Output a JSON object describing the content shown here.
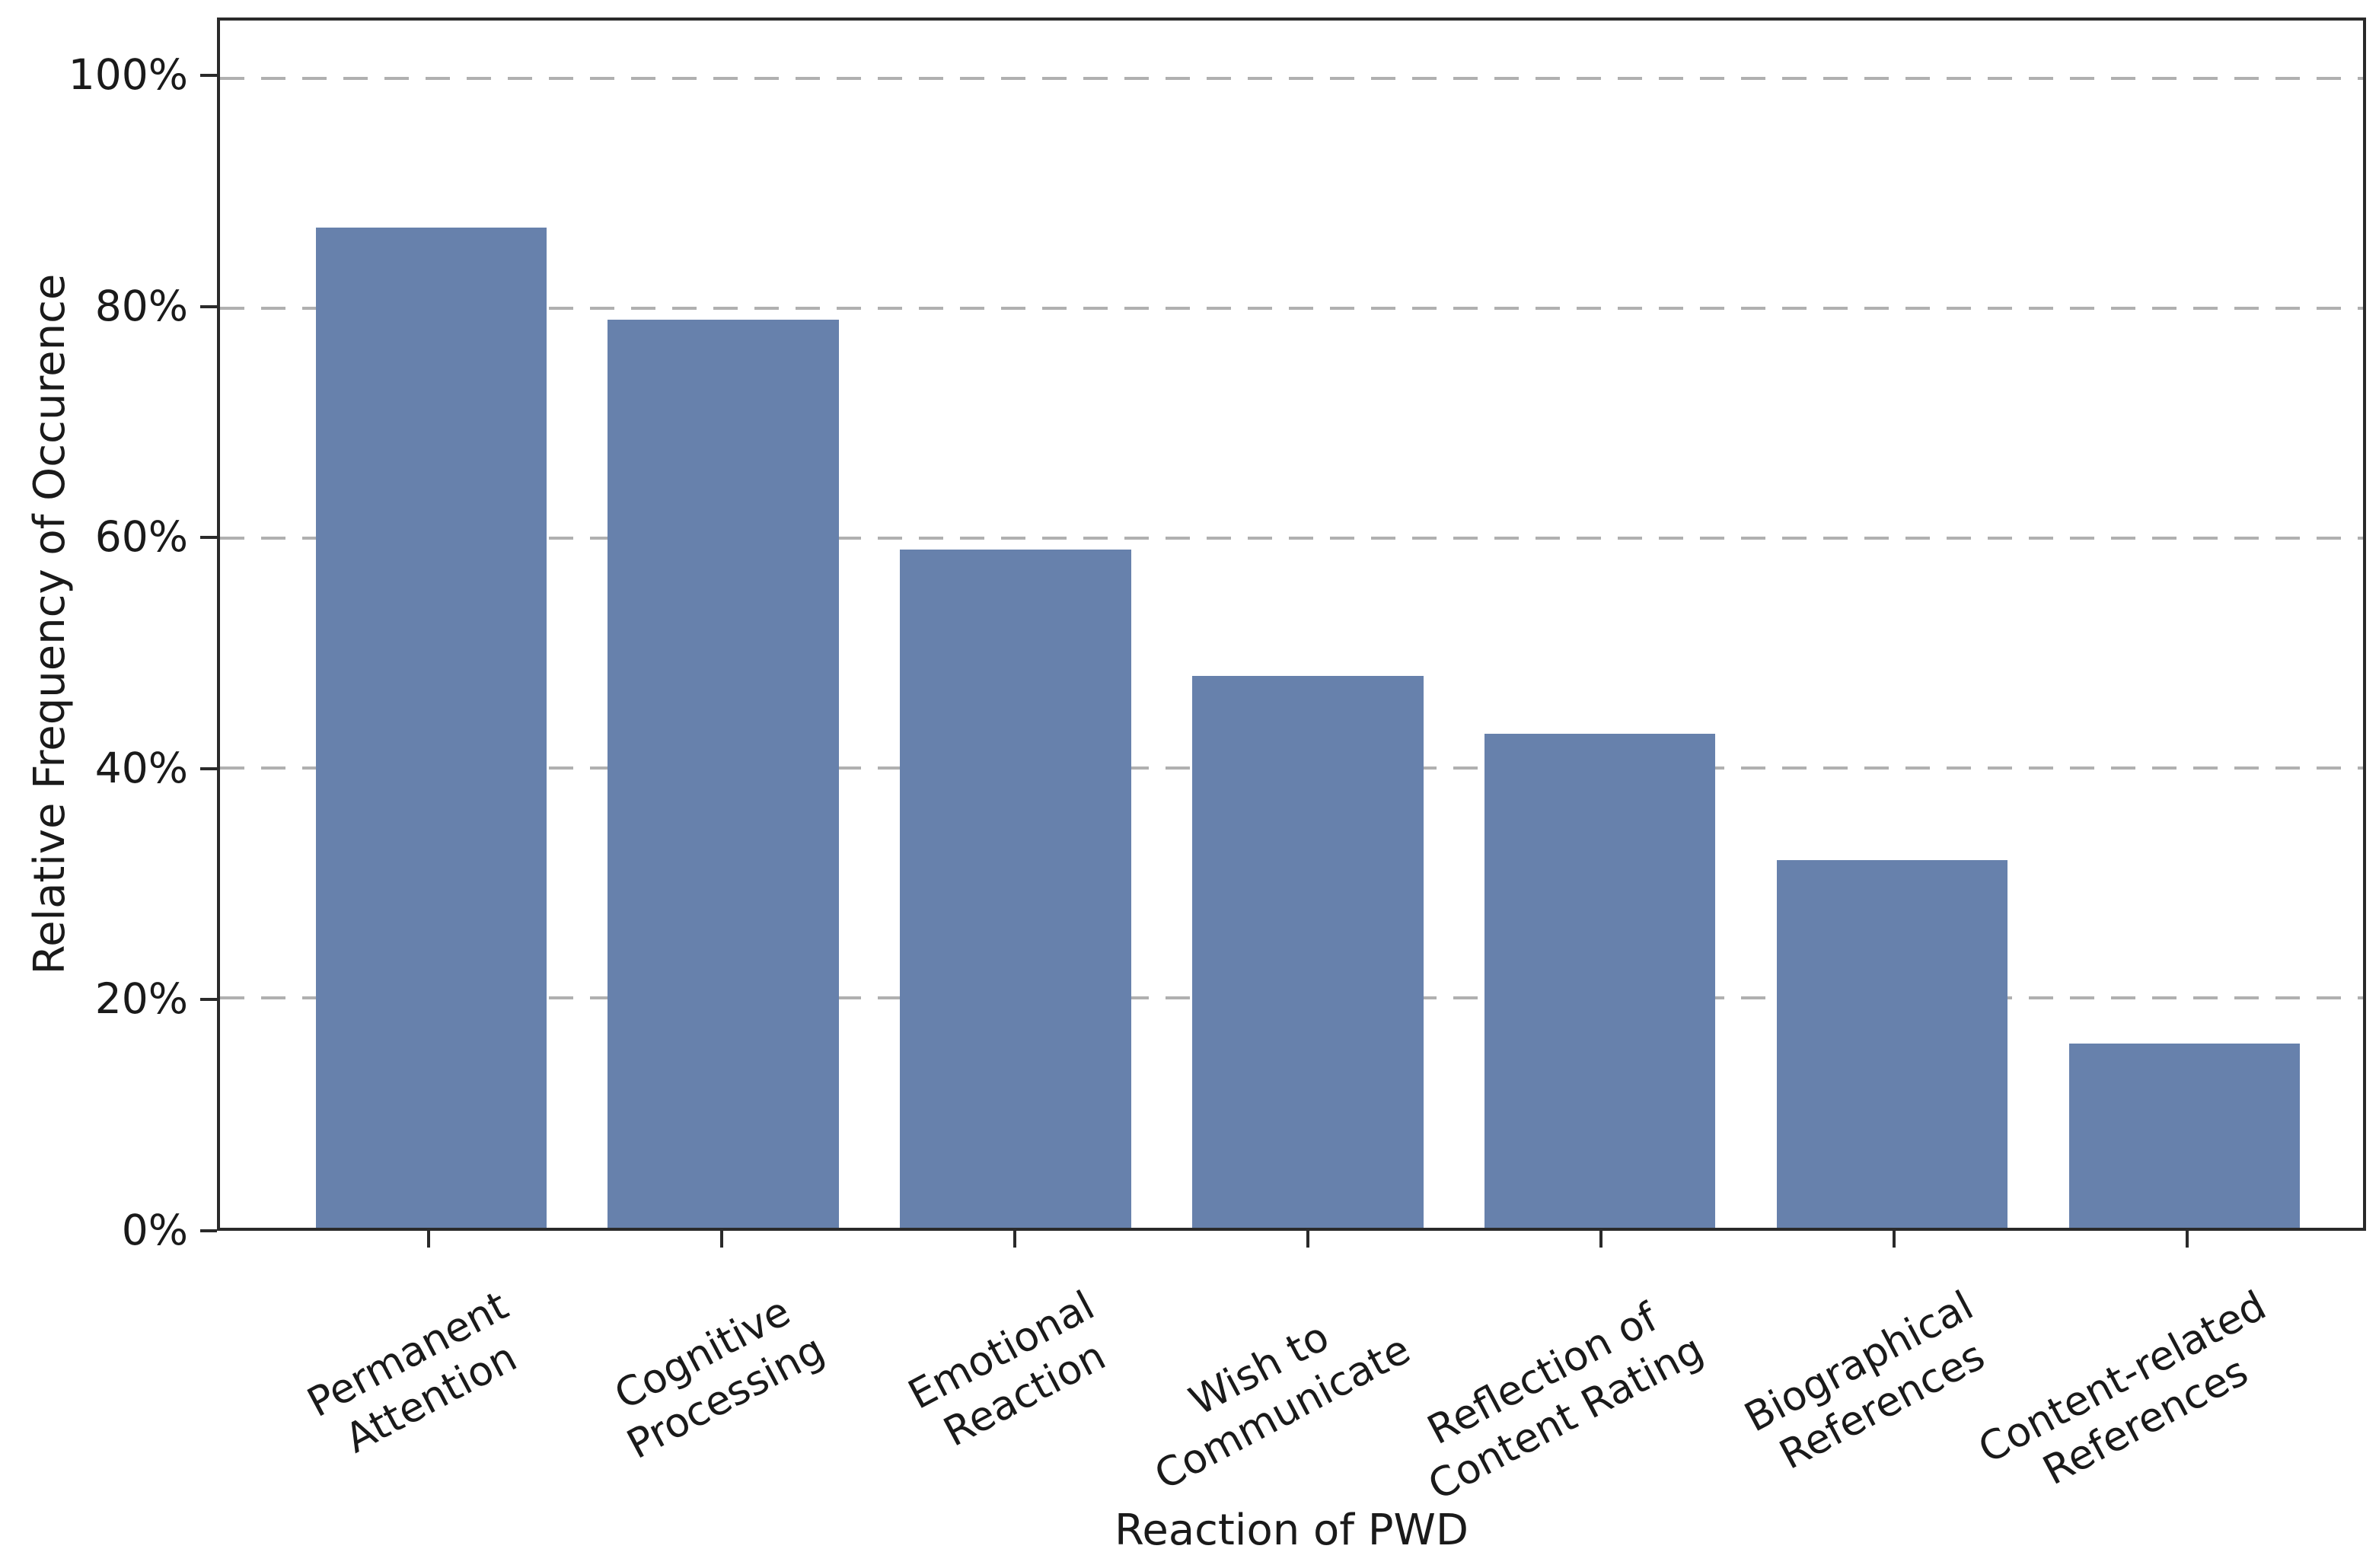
{
  "chart_data": {
    "type": "bar",
    "categories": [
      "Permanent\nAttention",
      "Cognitive\nProcessing",
      "Emotional\nReaction",
      "Wish to\nCommunicate",
      "Reflection of\nContent Rating",
      "Biographical\nReferences",
      "Content-related\nReferences"
    ],
    "values": [
      87,
      79,
      59,
      48,
      43,
      32,
      16
    ],
    "value_unit": "%",
    "title": "",
    "xlabel": "Reaction of PWD",
    "ylabel": "Relative Frequency of Occurence",
    "y_ticks": [
      {
        "value": 0,
        "label": "0%"
      },
      {
        "value": 20,
        "label": "20%"
      },
      {
        "value": 40,
        "label": "40%"
      },
      {
        "value": 60,
        "label": "60%"
      },
      {
        "value": 80,
        "label": "80%"
      },
      {
        "value": 100,
        "label": "100%"
      }
    ],
    "ylim": [
      0,
      105
    ],
    "grid": {
      "horizontal": true,
      "style": "dashed"
    },
    "legend": "none",
    "x_tick_label_rotation_deg": 28,
    "colors": {
      "bar": "#6781ac",
      "grid": "#b0b0b0",
      "axis": "#2a2a2a",
      "text": "#1a1a1a",
      "background": "#ffffff"
    }
  }
}
